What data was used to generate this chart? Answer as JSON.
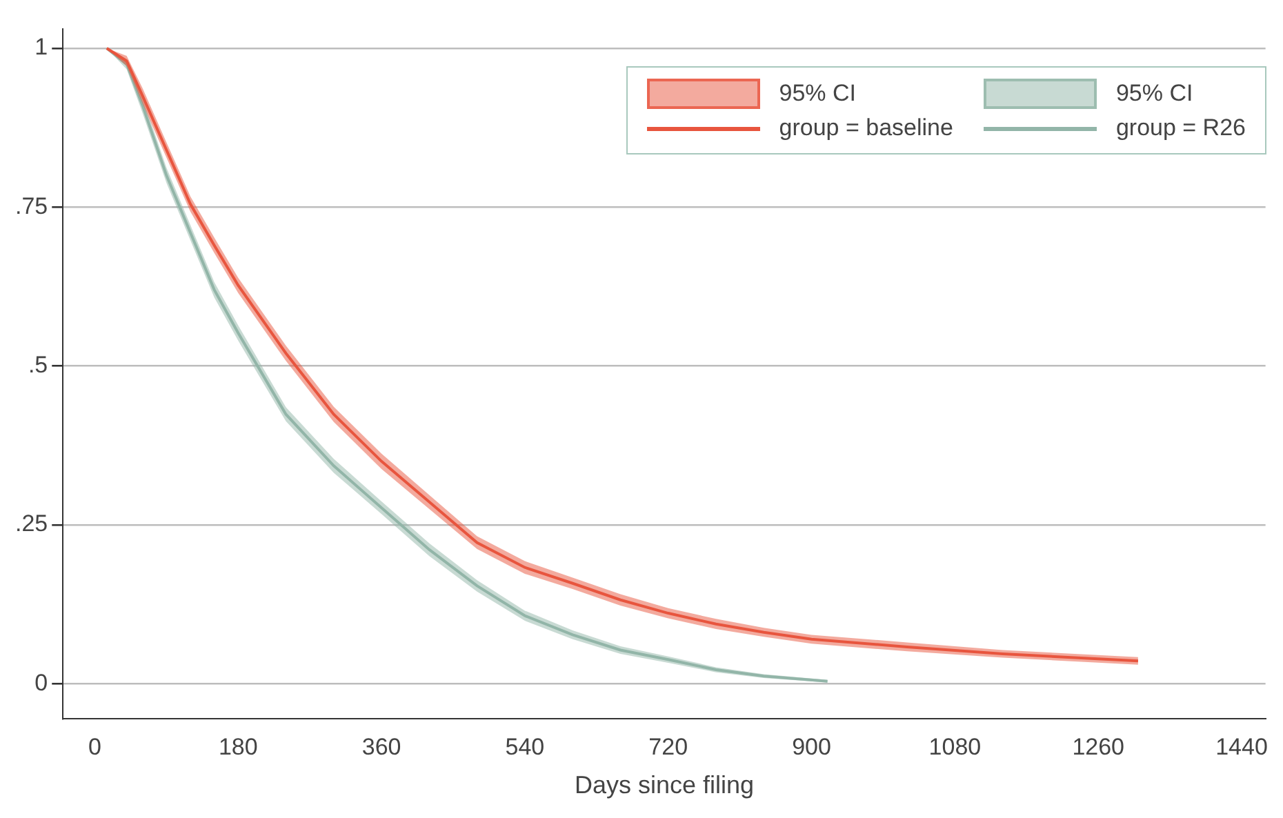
{
  "chart_data": {
    "type": "line",
    "xlabel": "Days since filing",
    "annotations": [
      "95% CI",
      "95% CI"
    ],
    "legend": "top right",
    "grid": "y",
    "xlim": [
      -40,
      1470
    ],
    "xticks": [
      0,
      180,
      360,
      540,
      720,
      900,
      1080,
      1260,
      1440
    ],
    "ylim": [
      -0.055,
      1.03
    ],
    "yticks": [
      {
        "value": 0,
        "label": "0"
      },
      {
        "value": 0.25,
        "label": ".25"
      },
      {
        "value": 0.5,
        "label": ".5"
      },
      {
        "value": 0.75,
        "label": ".75"
      },
      {
        "value": 1,
        "label": "1"
      }
    ],
    "series": [
      {
        "name": "group = baseline",
        "color": "#e8553e",
        "x": [
          15,
          40,
          60,
          90,
          120,
          150,
          180,
          240,
          300,
          360,
          420,
          480,
          540,
          600,
          660,
          720,
          780,
          840,
          900,
          1020,
          1140,
          1310
        ],
        "values": [
          1,
          0.98,
          0.925,
          0.84,
          0.755,
          0.69,
          0.627,
          0.52,
          0.424,
          0.35,
          0.286,
          0.222,
          0.183,
          0.158,
          0.132,
          0.111,
          0.094,
          0.081,
          0.07,
          0.058,
          0.047,
          0.036
        ],
        "lower": [
          1,
          0.972,
          0.913,
          0.828,
          0.743,
          0.678,
          0.615,
          0.508,
          0.412,
          0.338,
          0.275,
          0.212,
          0.173,
          0.149,
          0.123,
          0.103,
          0.086,
          0.074,
          0.063,
          0.051,
          0.041,
          0.03
        ],
        "upper": [
          1,
          0.988,
          0.937,
          0.852,
          0.767,
          0.702,
          0.639,
          0.532,
          0.436,
          0.362,
          0.297,
          0.232,
          0.193,
          0.167,
          0.141,
          0.119,
          0.102,
          0.088,
          0.077,
          0.065,
          0.053,
          0.042
        ]
      },
      {
        "name": "group = R26",
        "color": "#92b5a8",
        "x": [
          15,
          40,
          60,
          90,
          120,
          150,
          180,
          240,
          300,
          360,
          420,
          480,
          540,
          600,
          660,
          720,
          780,
          840,
          920
        ],
        "values": [
          1,
          0.975,
          0.91,
          0.8,
          0.71,
          0.62,
          0.552,
          0.424,
          0.343,
          0.277,
          0.211,
          0.154,
          0.107,
          0.077,
          0.053,
          0.038,
          0.022,
          0.012,
          0.004
        ],
        "lower": [
          1,
          0.967,
          0.898,
          0.788,
          0.698,
          0.608,
          0.54,
          0.413,
          0.332,
          0.267,
          0.201,
          0.145,
          0.099,
          0.07,
          0.047,
          0.033,
          0.018,
          0.009,
          0.002
        ],
        "upper": [
          1,
          0.983,
          0.922,
          0.812,
          0.722,
          0.632,
          0.564,
          0.435,
          0.354,
          0.287,
          0.221,
          0.163,
          0.115,
          0.084,
          0.059,
          0.043,
          0.026,
          0.015,
          0.006
        ]
      }
    ]
  }
}
